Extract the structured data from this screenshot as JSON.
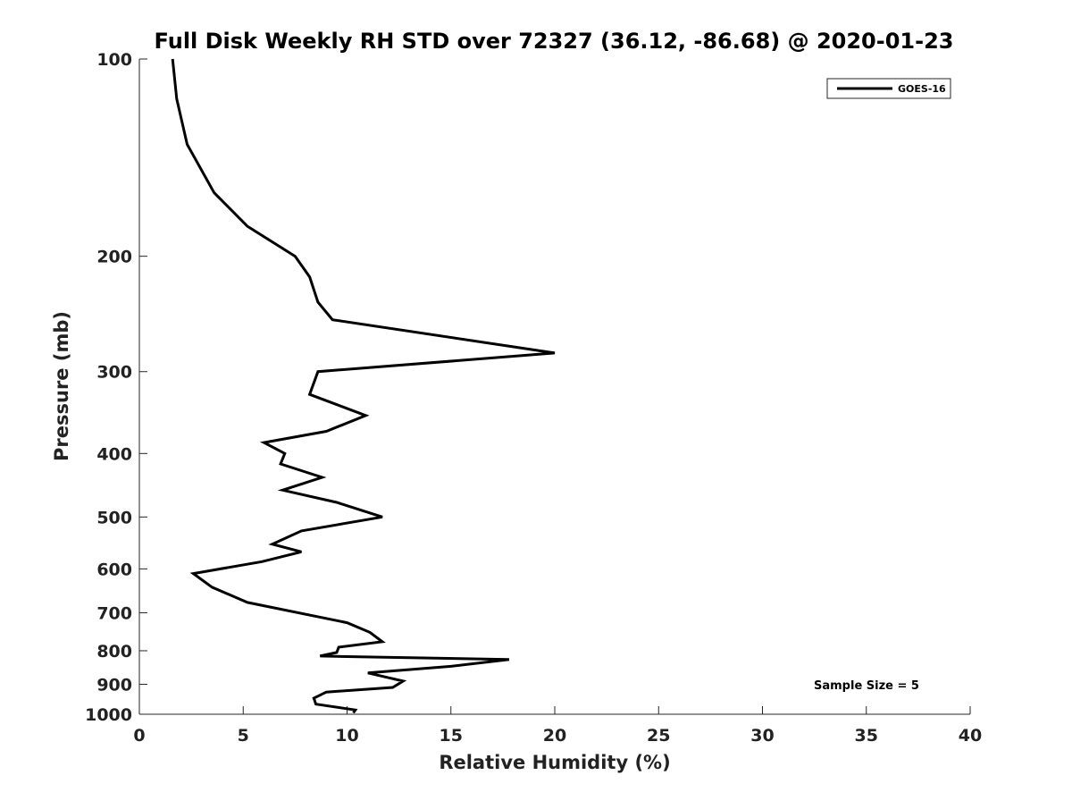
{
  "chart_data": {
    "type": "line",
    "title": "Full Disk Weekly RH STD over 72327 (36.12, -86.68) @ 2020-01-23",
    "xlabel": "Relative Humidity (%)",
    "ylabel": "Pressure (mb)",
    "xlim": [
      0,
      40
    ],
    "ylim": [
      100,
      1000
    ],
    "y_scale": "log",
    "y_reversed": true,
    "x_ticks": [
      0,
      5,
      10,
      15,
      20,
      25,
      30,
      35,
      40
    ],
    "y_ticks": [
      100,
      200,
      300,
      400,
      500,
      600,
      700,
      800,
      900,
      1000
    ],
    "grid": false,
    "legend_position": "top-right",
    "annotation": "Sample Size = 5",
    "line_color": "#000000",
    "series": [
      {
        "name": "GOES-16",
        "x": [
          1.6,
          1.8,
          2.3,
          3.6,
          5.2,
          7.5,
          8.2,
          8.6,
          9.3,
          20.0,
          8.6,
          8.2,
          10.9,
          9.0,
          6.0,
          7.0,
          6.8,
          8.8,
          6.9,
          9.5,
          11.7,
          7.8,
          6.4,
          7.8,
          5.9,
          2.6,
          3.5,
          5.2,
          10.0,
          11.1,
          11.7,
          9.6,
          9.5,
          8.7,
          17.8,
          15.0,
          11.0,
          12.7,
          12.2,
          9.0,
          8.4,
          8.5,
          10.4,
          10.3
        ],
        "y": [
          100,
          115,
          135,
          160,
          180,
          200,
          215,
          235,
          250,
          281,
          300,
          325,
          350,
          370,
          385,
          400,
          415,
          435,
          455,
          475,
          500,
          525,
          550,
          565,
          585,
          610,
          640,
          675,
          725,
          750,
          775,
          790,
          805,
          815,
          825,
          845,
          865,
          890,
          910,
          925,
          945,
          965,
          985,
          995
        ]
      }
    ]
  }
}
